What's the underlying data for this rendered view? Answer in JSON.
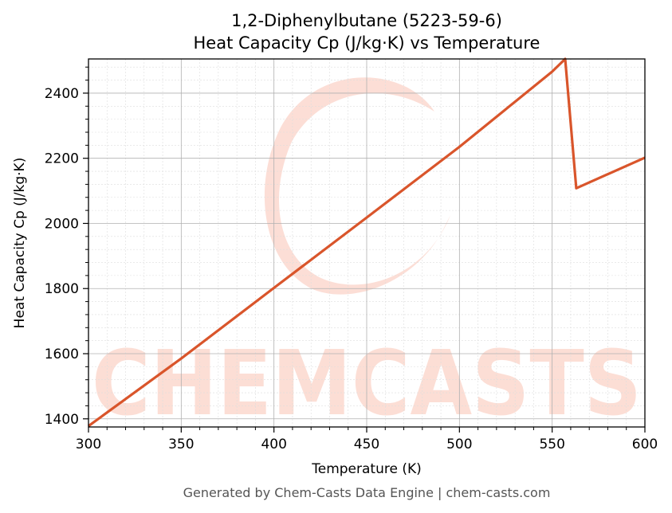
{
  "chart_data": {
    "type": "line",
    "title_line1": "1,2-Diphenylbutane (5223-59-6)",
    "title_line2": "Heat Capacity Cp (J/kg·K) vs Temperature",
    "xlabel": "Temperature (K)",
    "ylabel": "Heat Capacity Cp (J/kg·K)",
    "xlim": [
      300,
      600
    ],
    "ylim": [
      1375,
      2505
    ],
    "xticks": [
      300,
      350,
      400,
      450,
      500,
      550,
      600
    ],
    "yticks": [
      1400,
      1600,
      1800,
      2000,
      2200,
      2400
    ],
    "grid": true,
    "line_color": "#d9552b",
    "series": [
      {
        "x": [
          300,
          350,
          400,
          450,
          500,
          550,
          557,
          563,
          600
        ],
        "y": [
          1378,
          1585,
          1802,
          2018,
          2235,
          2466,
          2505,
          2108,
          2202
        ]
      }
    ],
    "watermark": "CHEMCASTS",
    "footer": "Generated by Chem-Casts Data Engine | chem-casts.com"
  }
}
